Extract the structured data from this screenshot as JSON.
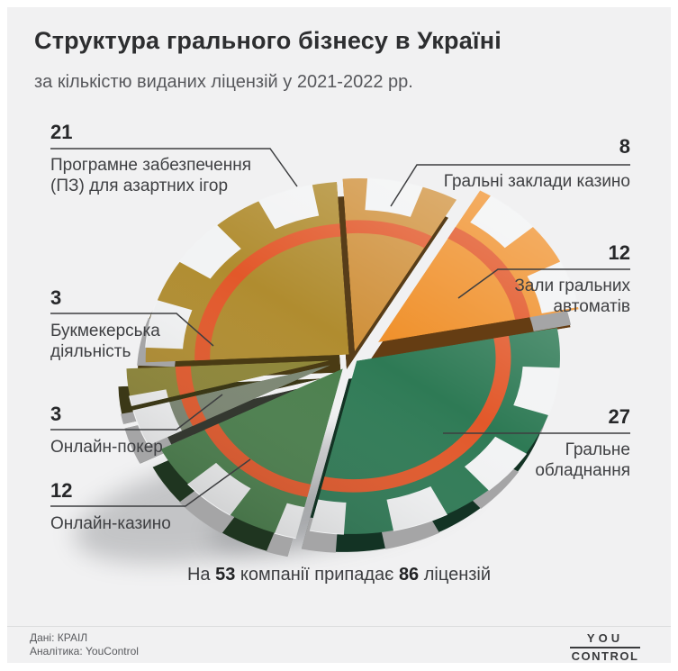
{
  "page": {
    "background": "#f1f1f2",
    "frame": "#ffffff"
  },
  "header": {
    "title": "Структура грального бізнесу в Україні",
    "subtitle": "за кількістю виданих ліцензій у 2021-2022 рр."
  },
  "summary": {
    "part1": "На",
    "companies": "53",
    "part2": "компанії припадає",
    "licenses": "86",
    "part3": "ліцензій"
  },
  "footer": {
    "source": "Дані: КРАІЛ",
    "analytics": "Аналітика: YouControl",
    "logo_line1": "YOU",
    "logo_line2": "CONTROL"
  },
  "chart_data": {
    "type": "pie",
    "shape": "3d-poker-chip",
    "title": "Структура грального бізнесу в Україні",
    "subtitle": "за кількістю виданих ліцензій у 2021-2022 рр.",
    "units": "ліцензій",
    "total_companies": 53,
    "total_licenses": 86,
    "legend_position": "callouts",
    "style": {
      "ring_color": "#e2582a",
      "edge_spot_color": "#f2f3f4",
      "background": "#f1f1f2"
    },
    "slices": [
      {
        "label": "Гральні заклади казино",
        "value": 8,
        "color": "#d0913c",
        "explode": 8
      },
      {
        "label": "Зали гральних автоматів",
        "value": 12,
        "color": "#f0922e",
        "explode": 34
      },
      {
        "label": "Гральне обладнання",
        "value": 27,
        "color": "#2e7a55",
        "explode": 6
      },
      {
        "label": "Онлайн-казино",
        "value": 12,
        "color": "#4a7f4c",
        "explode": 18
      },
      {
        "label": "Онлайн-покер",
        "value": 3,
        "color": "#7b8672",
        "explode": 26
      },
      {
        "label": "Букмекерська діяльність",
        "value": 3,
        "color": "#8d8536",
        "explode": 26
      },
      {
        "label": "Програмне забезпечення (ПЗ) для азартних ігор",
        "value": 21,
        "color": "#b08c2f",
        "explode": 6
      }
    ]
  }
}
